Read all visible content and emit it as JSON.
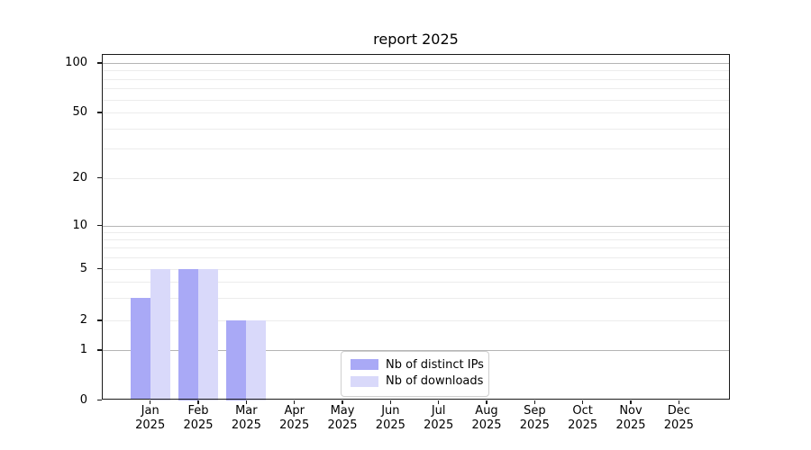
{
  "chart_data": {
    "type": "bar",
    "title": "report 2025",
    "categories": [
      "Jan",
      "Feb",
      "Mar",
      "Apr",
      "May",
      "Jun",
      "Jul",
      "Aug",
      "Sep",
      "Oct",
      "Nov",
      "Dec"
    ],
    "x_year_label": "2025",
    "series": [
      {
        "name": "Nb of distinct IPs",
        "color": "#a9a9f6",
        "values": [
          3,
          5,
          2,
          0,
          0,
          0,
          0,
          0,
          0,
          0,
          0,
          0
        ]
      },
      {
        "name": "Nb of downloads",
        "color": "#d9d9fa",
        "values": [
          5,
          5,
          2,
          0,
          0,
          0,
          0,
          0,
          0,
          0,
          0,
          0
        ]
      }
    ],
    "yticks": [
      0,
      1,
      2,
      5,
      10,
      20,
      50,
      100
    ],
    "yscale": "symlog",
    "ylim": [
      0,
      110
    ],
    "grid": "horizontal, log minors, darker at 1/10/100",
    "legend_position": "lower center inside axes",
    "xlabel": "",
    "ylabel": ""
  }
}
